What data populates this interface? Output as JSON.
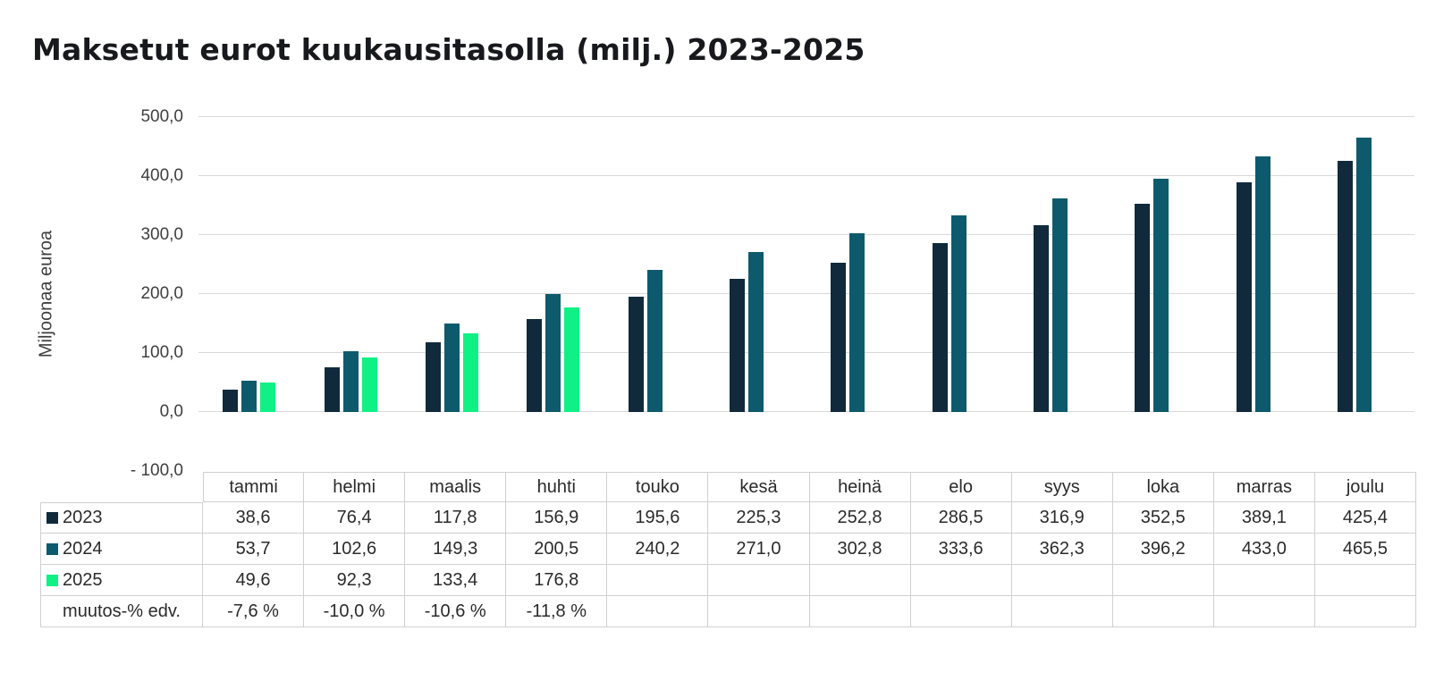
{
  "title": "Maksetut eurot kuukausitasolla (milj.) 2023-2025",
  "chart_data": {
    "type": "bar",
    "title": "Maksetut eurot kuukausitasolla (milj.) 2023-2025",
    "ylabel": "Miljoonaa euroa",
    "ylim": [
      -100,
      500
    ],
    "ytick_step": 100,
    "ytick_labels": [
      "500,0",
      "400,0",
      "300,0",
      "200,0",
      "100,0",
      "0,0",
      "- 100,0"
    ],
    "grid": true,
    "legend_position": "table-row-labels",
    "categories": [
      "tammi",
      "helmi",
      "maalis",
      "huhti",
      "touko",
      "kesä",
      "heinä",
      "elo",
      "syys",
      "loka",
      "marras",
      "joulu"
    ],
    "series": [
      {
        "name": "2023",
        "color": "#102a3c",
        "values": [
          38.6,
          76.4,
          117.8,
          156.9,
          195.6,
          225.3,
          252.8,
          286.5,
          316.9,
          352.5,
          389.1,
          425.4
        ]
      },
      {
        "name": "2024",
        "color": "#0e5a6d",
        "values": [
          53.7,
          102.6,
          149.3,
          200.5,
          240.2,
          271.0,
          302.8,
          333.6,
          362.3,
          396.2,
          433.0,
          465.5
        ]
      },
      {
        "name": "2025",
        "color": "#10f185",
        "values": [
          49.6,
          92.3,
          133.4,
          176.8
        ]
      }
    ],
    "extra_row": {
      "label": "muutos-% edv.",
      "values": [
        "-7,6 %",
        "-10,0 %",
        "-10,6 %",
        "-11,8 %",
        "",
        "",
        "",
        "",
        "",
        "",
        "",
        ""
      ]
    }
  },
  "colors": {
    "background": "#ffffff",
    "title_text": "#17191d",
    "axis_text": "#3f3f3f",
    "table_text": "#2b2b2b",
    "gridline": "#d9d9d9",
    "table_border": "#d0d0d0",
    "series_2023": "#102a3c",
    "series_2024": "#0e5a6d",
    "series_2025": "#10f185"
  }
}
